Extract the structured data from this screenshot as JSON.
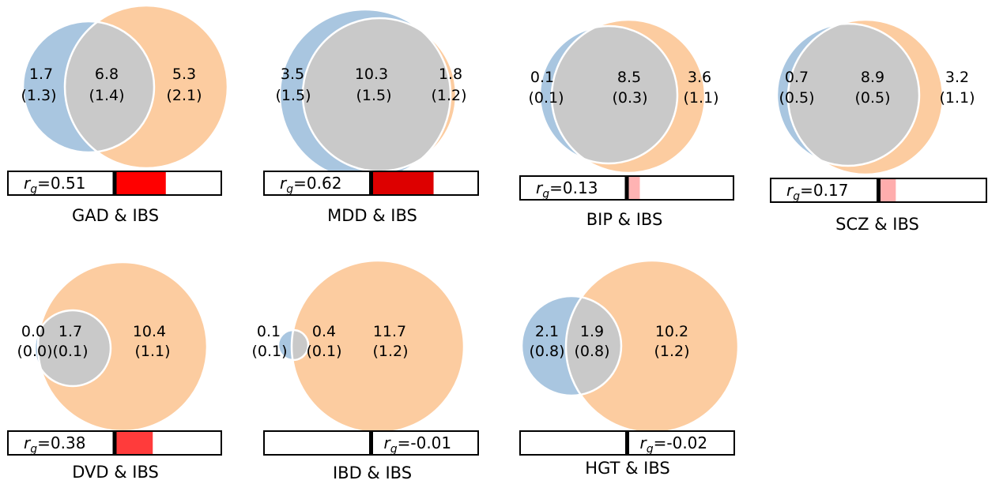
{
  "chart_data": [
    {
      "type": "venn",
      "title": "GAD & IBS",
      "regions": [
        {
          "value": "1.7",
          "se": "(1.3)"
        },
        {
          "value": "6.8",
          "se": "(1.4)"
        },
        {
          "value": "5.3",
          "se": "(2.1)"
        }
      ],
      "rg_label": "0.51",
      "rg": 0.51,
      "bar_color": "#ff0000"
    },
    {
      "type": "venn",
      "title": "MDD & IBS",
      "regions": [
        {
          "value": "3.5",
          "se": "(1.5)"
        },
        {
          "value": "10.3",
          "se": "(1.5)"
        },
        {
          "value": "1.8",
          "se": "(1.2)"
        }
      ],
      "rg_label": "0.62",
      "rg": 0.62,
      "bar_color": "#dd0000"
    },
    {
      "type": "venn",
      "title": "BIP & IBS",
      "regions": [
        {
          "value": "0.1",
          "se": "(0.1)"
        },
        {
          "value": "8.5",
          "se": "(0.3)"
        },
        {
          "value": "3.6",
          "se": "(1.1)"
        }
      ],
      "rg_label": "0.13",
      "rg": 0.13,
      "bar_color": "#ffb3b3"
    },
    {
      "type": "venn",
      "title": "SCZ & IBS",
      "regions": [
        {
          "value": "0.7",
          "se": "(0.5)"
        },
        {
          "value": "8.9",
          "se": "(0.5)"
        },
        {
          "value": "3.2",
          "se": "(1.1)"
        }
      ],
      "rg_label": "0.17",
      "rg": 0.17,
      "bar_color": "#ffadad"
    },
    {
      "type": "venn",
      "title": "DVD & IBS",
      "regions": [
        {
          "value": "0.0",
          "se": "(0.0)"
        },
        {
          "value": "1.7",
          "se": "(0.1)"
        },
        {
          "value": "10.4",
          "se": "(1.1)"
        }
      ],
      "rg_label": "0.38",
      "rg": 0.38,
      "bar_color": "#ff3b3b"
    },
    {
      "type": "venn",
      "title": "IBD & IBS",
      "regions": [
        {
          "value": "0.1",
          "se": "(0.1)"
        },
        {
          "value": "0.4",
          "se": "(0.1)"
        },
        {
          "value": "11.7",
          "se": "(1.2)"
        }
      ],
      "rg_label": "-0.01",
      "rg": -0.01,
      "bar_color": "#f2f2ff"
    },
    {
      "type": "venn",
      "title": "HGT & IBS",
      "regions": [
        {
          "value": "2.1",
          "se": "(0.8)"
        },
        {
          "value": "1.9",
          "se": "(0.8)"
        },
        {
          "value": "10.2",
          "se": "(1.2)"
        }
      ],
      "rg_label": "-0.02",
      "rg": -0.02,
      "bar_color": "#f2f2ff"
    }
  ],
  "colors": {
    "trait_a": "#a9c6e0",
    "trait_b": "#fccca0",
    "overlap": "#c9c9c9",
    "outline": "#ffffff",
    "bar_border": "#000000",
    "zero_line": "#000000"
  }
}
